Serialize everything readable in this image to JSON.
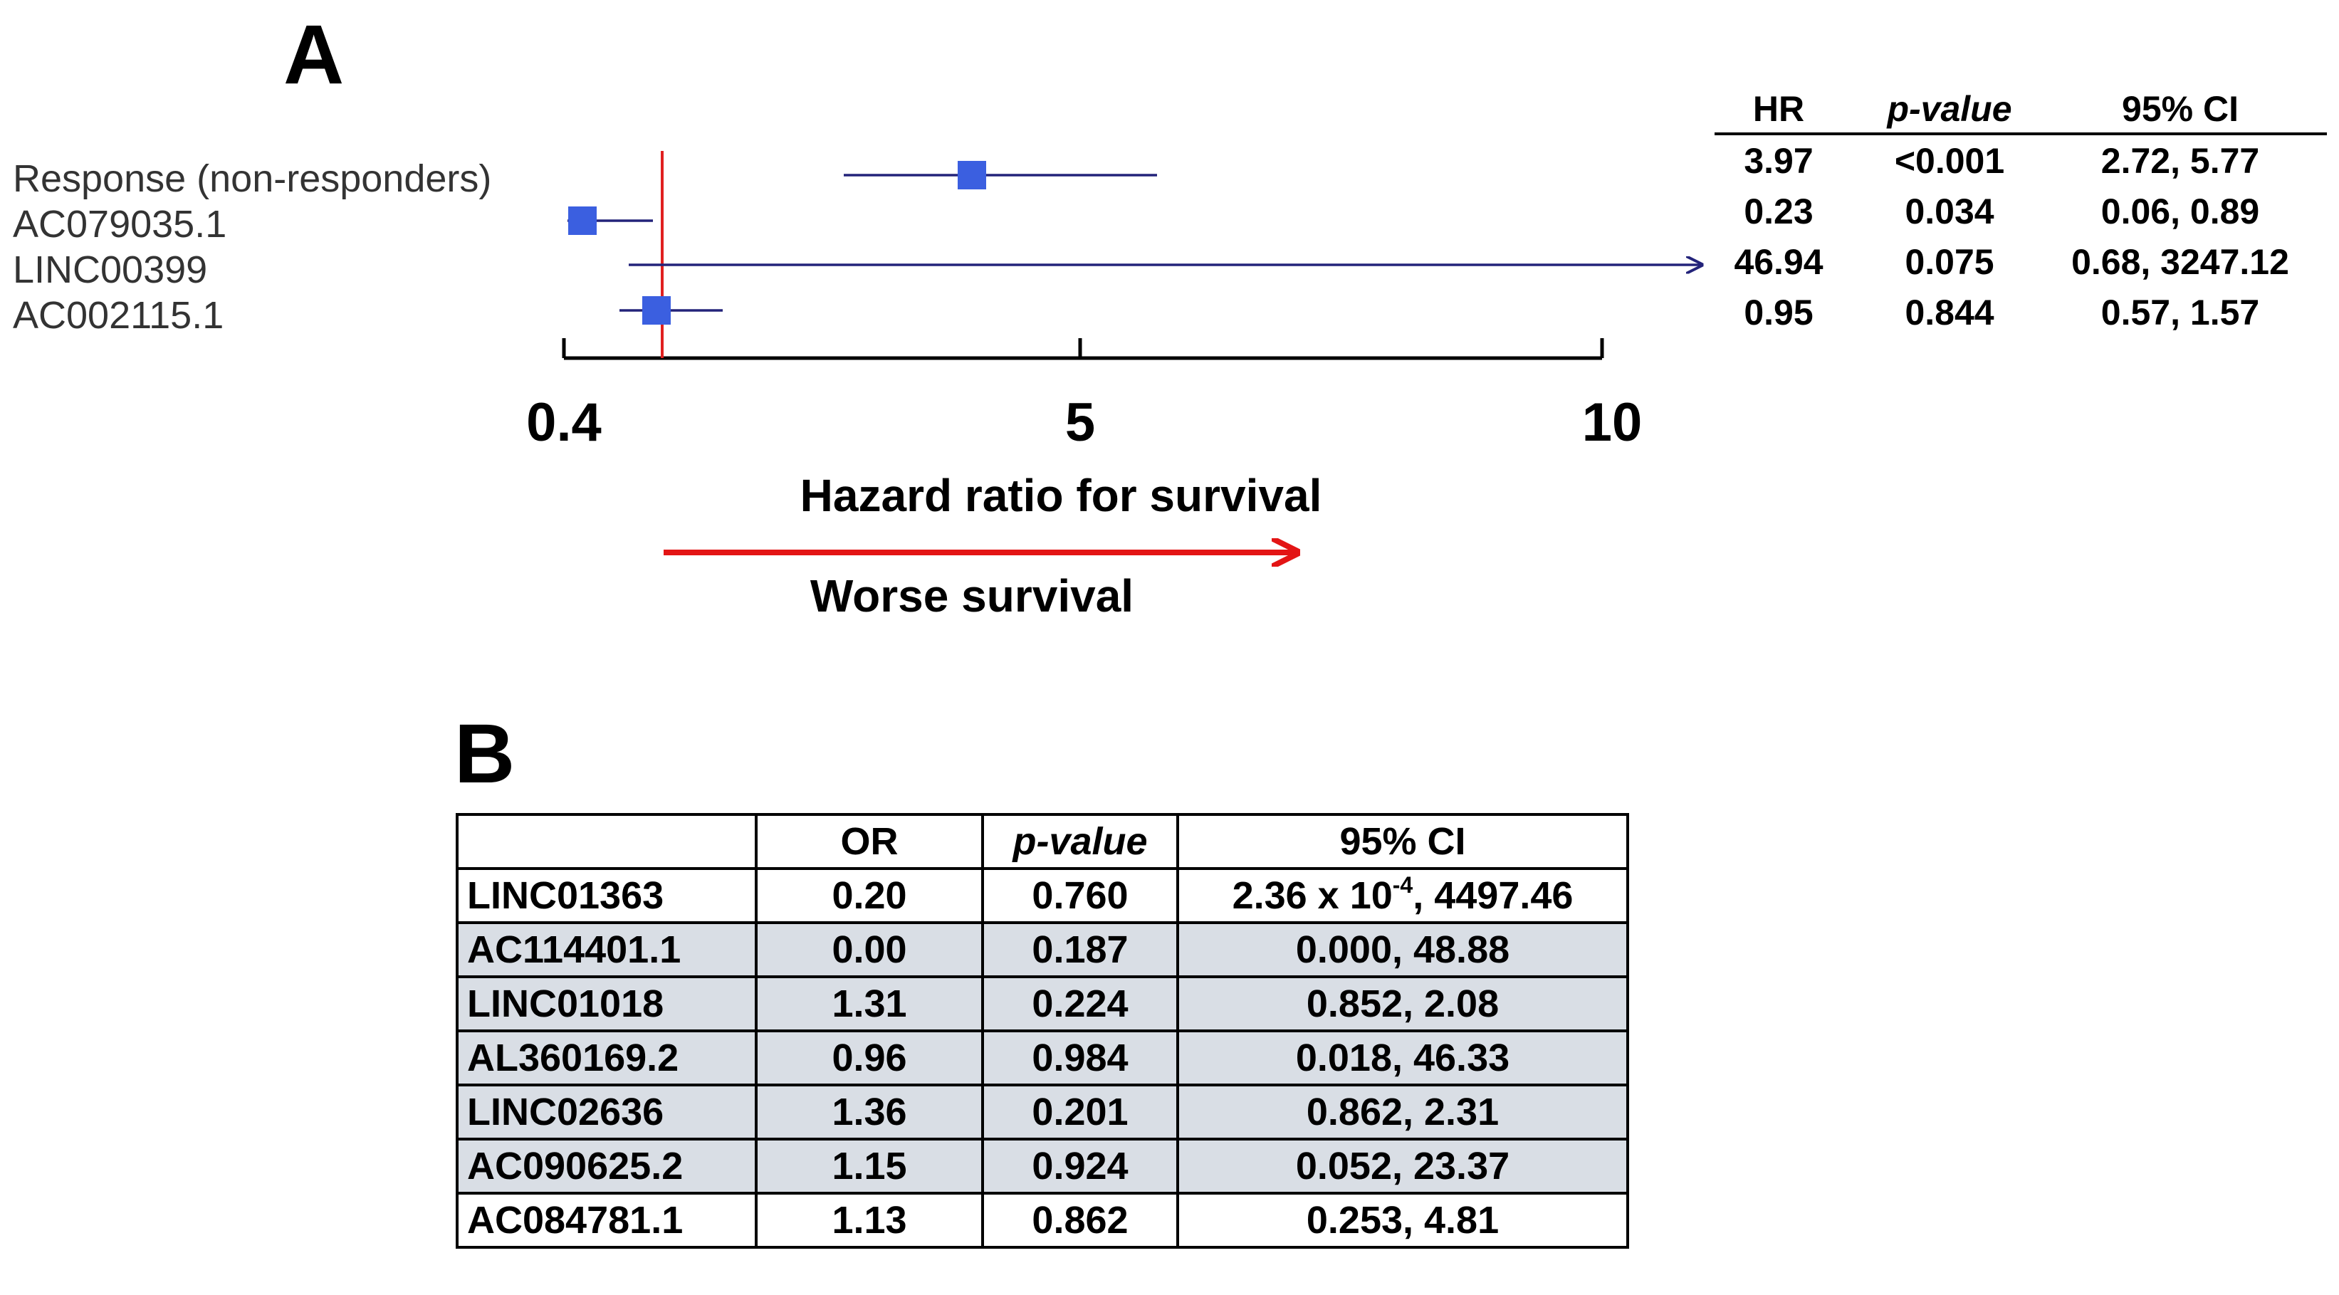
{
  "panel_a": {
    "letter": "A",
    "stats_headers": {
      "hr": "HR",
      "p": "p-value",
      "ci": "95% CI"
    },
    "axis": {
      "ticks": [
        "0.4",
        "5",
        "10"
      ],
      "title": "Hazard ratio for survival"
    },
    "direction_label": "Worse survival",
    "colors": {
      "marker": "#3b5fe0",
      "ci_line": "#23237a",
      "reference": "#e02020",
      "arrow": "#e31515"
    }
  },
  "chart_data": {
    "type": "forest",
    "title": "",
    "xlabel": "Hazard ratio for survival",
    "ylabel": "",
    "x_ticks": [
      0.4,
      5,
      10
    ],
    "xlim": [
      0.4,
      10
    ],
    "reference_line": 1,
    "rows": [
      {
        "label": "Response (non-responders)",
        "hr": 3.97,
        "ci_low": 2.72,
        "ci_high": 5.77,
        "hr_text": "3.97",
        "p_text": "<0.001",
        "ci_text": "2.72, 5.77",
        "truncated": false
      },
      {
        "label": "AC079035.1",
        "hr": 0.23,
        "ci_low": 0.06,
        "ci_high": 0.89,
        "hr_text": "0.23",
        "p_text": "0.034",
        "ci_text": "0.06, 0.89",
        "truncated": false
      },
      {
        "label": "LINC00399",
        "hr": 46.94,
        "ci_low": 0.68,
        "ci_high": 3247.12,
        "hr_text": "46.94",
        "p_text": "0.075",
        "ci_text": "0.68, 3247.12",
        "truncated": true
      },
      {
        "label": "AC002115.1",
        "hr": 0.95,
        "ci_low": 0.57,
        "ci_high": 1.57,
        "hr_text": "0.95",
        "p_text": "0.844",
        "ci_text": "0.57, 1.57",
        "truncated": false
      }
    ]
  },
  "panel_b": {
    "letter": "B",
    "headers": [
      "",
      "OR",
      "p-value",
      "95% CI"
    ],
    "first_row": {
      "name": "LINC01363",
      "or": "0.20",
      "p": "0.760",
      "ci_prefix": "2.36 x 10",
      "ci_exp": "-4",
      "ci_suffix": ", 4497.46"
    },
    "rows": [
      {
        "name": "AC114401.1",
        "or": "0.00",
        "p": "0.187",
        "ci": "0.000, 48.88",
        "shaded": true
      },
      {
        "name": "LINC01018",
        "or": "1.31",
        "p": "0.224",
        "ci": "0.852, 2.08",
        "shaded": true
      },
      {
        "name": "AL360169.2",
        "or": "0.96",
        "p": "0.984",
        "ci": "0.018, 46.33",
        "shaded": true
      },
      {
        "name": "LINC02636",
        "or": "1.36",
        "p": "0.201",
        "ci": "0.862, 2.31",
        "shaded": true
      },
      {
        "name": "AC090625.2",
        "or": "1.15",
        "p": "0.924",
        "ci": "0.052, 23.37",
        "shaded": true
      },
      {
        "name": "AC084781.1",
        "or": "1.13",
        "p": "0.862",
        "ci": "0.253, 4.81",
        "shaded": false
      }
    ]
  }
}
